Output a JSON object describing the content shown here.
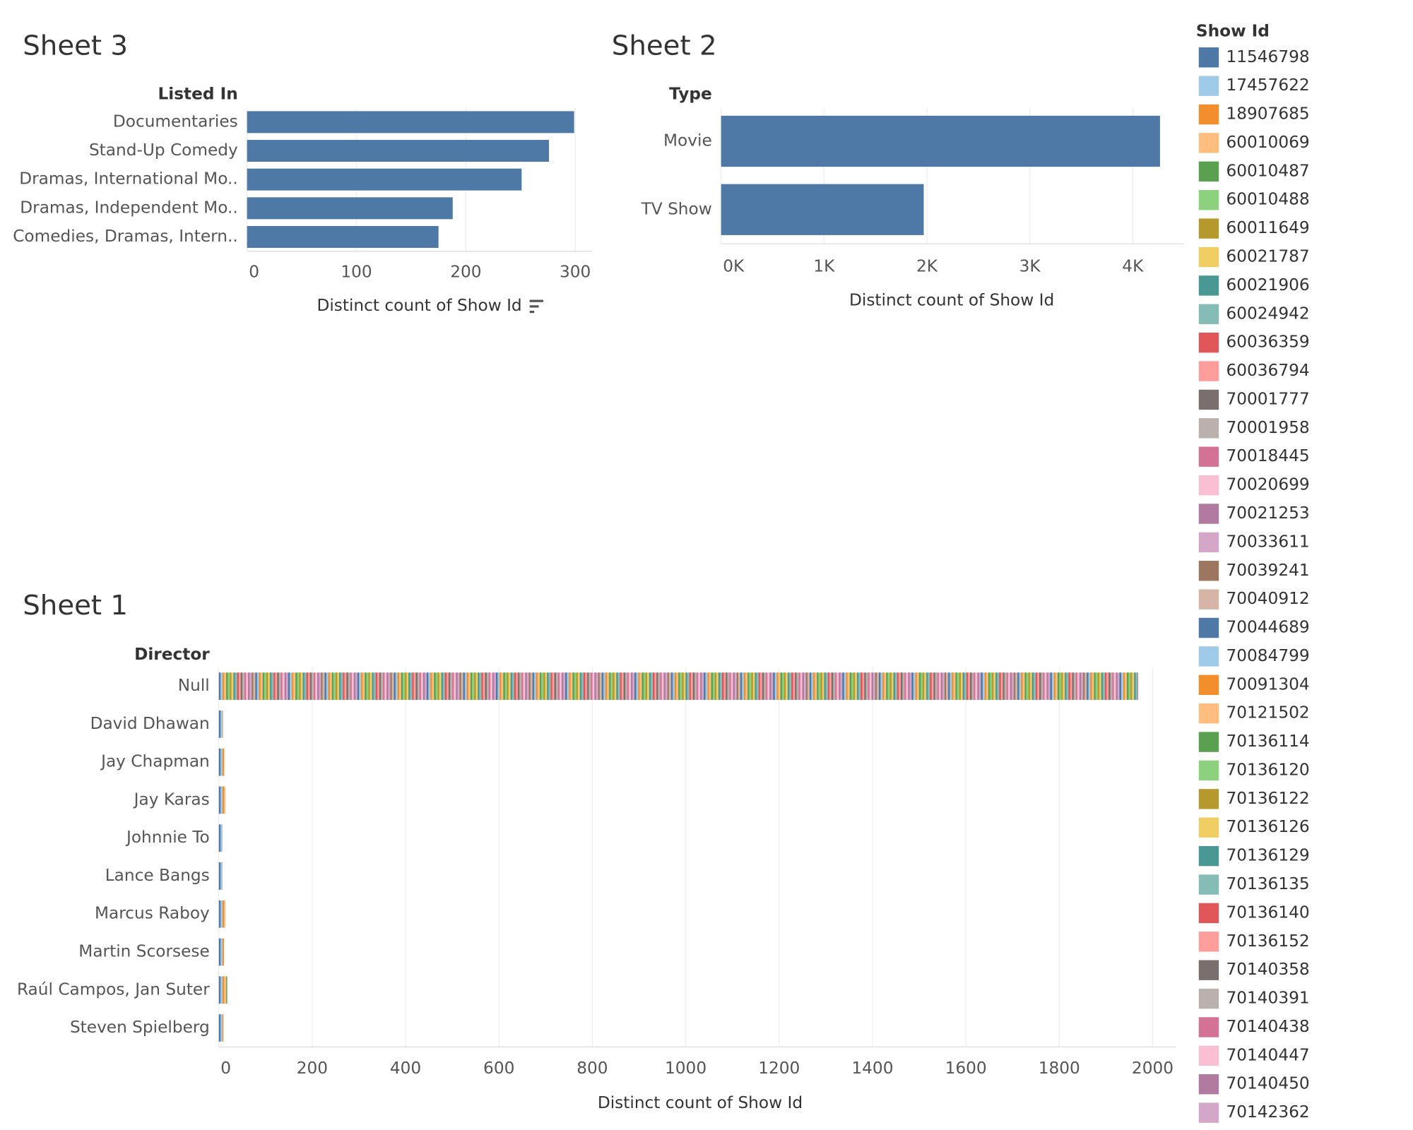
{
  "chart_data": [
    {
      "type": "bar",
      "title": "Sheet 3",
      "y_label": "Listed In",
      "x_label": "Distinct count of Show Id",
      "categories": [
        "Documentaries",
        "Stand-Up Comedy",
        "Dramas, International Mo..",
        "Dramas, Independent Mo..",
        "Comedies, Dramas, Intern.."
      ],
      "values": [
        299,
        276,
        251,
        188,
        175
      ],
      "color": "#4e79a7",
      "xlim": [
        0,
        315
      ],
      "xticks": [
        0,
        100,
        200,
        300
      ],
      "grid": true
    },
    {
      "type": "bar",
      "title": "Sheet 2",
      "y_label": "Type",
      "x_label": "Distinct count of Show Id",
      "categories": [
        "Movie",
        "TV Show"
      ],
      "values": [
        4265,
        1969
      ],
      "color": "#4e79a7",
      "xlim": [
        0,
        4500
      ],
      "xticks": [
        {
          "value": 0,
          "label": "0K"
        },
        {
          "value": 1000,
          "label": "1K"
        },
        {
          "value": 2000,
          "label": "2K"
        },
        {
          "value": 3000,
          "label": "3K"
        },
        {
          "value": 4000,
          "label": "4K"
        }
      ],
      "grid": true
    },
    {
      "type": "bar",
      "title": "Sheet 1",
      "y_label": "Director",
      "x_label": "Distinct count of Show Id",
      "categories": [
        "Null",
        "David Dhawan",
        "Jay Chapman",
        "Jay Karas",
        "Johnnie To",
        "Lance Bangs",
        "Marcus Raboy",
        "Martin Scorsese",
        "Raúl Campos, Jan Suter",
        "Steven Spielberg"
      ],
      "values": [
        1969,
        9,
        12,
        14,
        8,
        8,
        14,
        11,
        18,
        10
      ],
      "xlim": [
        0,
        2050
      ],
      "xticks": [
        0,
        200,
        400,
        600,
        800,
        1000,
        1200,
        1400,
        1600,
        1800,
        2000
      ],
      "grid": true
    }
  ],
  "legend": {
    "title": "Show Id",
    "items": [
      {
        "label": "11546798",
        "color": "#4e79a7"
      },
      {
        "label": "17457622",
        "color": "#a0cbe8"
      },
      {
        "label": "18907685",
        "color": "#f28e2b"
      },
      {
        "label": "60010069",
        "color": "#ffbe7d"
      },
      {
        "label": "60010487",
        "color": "#59a14f"
      },
      {
        "label": "60010488",
        "color": "#8cd17d"
      },
      {
        "label": "60011649",
        "color": "#b6992d"
      },
      {
        "label": "60021787",
        "color": "#f1ce63"
      },
      {
        "label": "60021906",
        "color": "#499894"
      },
      {
        "label": "60024942",
        "color": "#86bcb6"
      },
      {
        "label": "60036359",
        "color": "#e15759"
      },
      {
        "label": "60036794",
        "color": "#ff9d9a"
      },
      {
        "label": "70001777",
        "color": "#79706e"
      },
      {
        "label": "70001958",
        "color": "#bab0ac"
      },
      {
        "label": "70018445",
        "color": "#d37295"
      },
      {
        "label": "70020699",
        "color": "#fabfd2"
      },
      {
        "label": "70021253",
        "color": "#b07aa1"
      },
      {
        "label": "70033611",
        "color": "#d4a6c8"
      },
      {
        "label": "70039241",
        "color": "#9d7660"
      },
      {
        "label": "70040912",
        "color": "#d7b5a6"
      },
      {
        "label": "70044689",
        "color": "#4e79a7"
      },
      {
        "label": "70084799",
        "color": "#a0cbe8"
      },
      {
        "label": "70091304",
        "color": "#f28e2b"
      },
      {
        "label": "70121502",
        "color": "#ffbe7d"
      },
      {
        "label": "70136114",
        "color": "#59a14f"
      },
      {
        "label": "70136120",
        "color": "#8cd17d"
      },
      {
        "label": "70136122",
        "color": "#b6992d"
      },
      {
        "label": "70136126",
        "color": "#f1ce63"
      },
      {
        "label": "70136129",
        "color": "#499894"
      },
      {
        "label": "70136135",
        "color": "#86bcb6"
      },
      {
        "label": "70136140",
        "color": "#e15759"
      },
      {
        "label": "70136152",
        "color": "#ff9d9a"
      },
      {
        "label": "70140358",
        "color": "#79706e"
      },
      {
        "label": "70140391",
        "color": "#bab0ac"
      },
      {
        "label": "70140438",
        "color": "#d37295"
      },
      {
        "label": "70140447",
        "color": "#fabfd2"
      },
      {
        "label": "70140450",
        "color": "#b07aa1"
      },
      {
        "label": "70142362",
        "color": "#d4a6c8"
      }
    ]
  }
}
